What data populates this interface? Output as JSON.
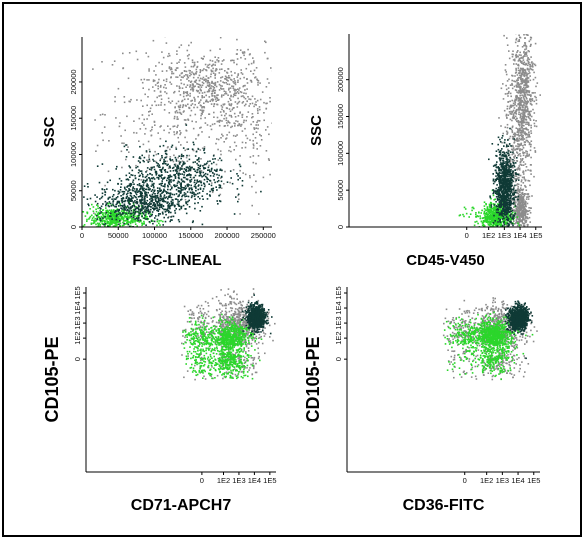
{
  "chart_data": [
    {
      "type": "scatter",
      "panel": "top-left",
      "xlabel": "FSC-LINEAL",
      "ylabel": "SSC",
      "x_scale": "linear",
      "y_scale": "linear",
      "xlim": [
        0,
        262000
      ],
      "ylim": [
        0,
        262000
      ],
      "x_ticks": [
        0,
        50000,
        100000,
        150000,
        200000,
        250000
      ],
      "x_tick_labels": [
        "0",
        "50000",
        "100000",
        "150000",
        "200000",
        "250000"
      ],
      "y_ticks": [
        0,
        50000,
        100000,
        150000,
        200000
      ],
      "y_tick_labels": [
        "0",
        "50000",
        "100000",
        "150000",
        "200000"
      ],
      "populations": [
        {
          "color": "#8c8c8c",
          "role": "background events",
          "clusters": [
            {
              "cx": 140000,
              "cy": 160000,
              "sx": 55000,
              "sy": 55000,
              "n": 500
            },
            {
              "cx": 170000,
              "cy": 195000,
              "sx": 30000,
              "sy": 22000,
              "n": 350
            },
            {
              "cx": 230000,
              "cy": 150000,
              "sx": 25000,
              "sy": 50000,
              "n": 200
            }
          ]
        },
        {
          "color": "#2bd62b",
          "role": "green population",
          "clusters": [
            {
              "cx": 45000,
              "cy": 12000,
              "sx": 22000,
              "sy": 8000,
              "n": 500
            }
          ]
        },
        {
          "color": "#0f3a36",
          "role": "dark teal population",
          "clusters": [
            {
              "cx": 80000,
              "cy": 35000,
              "sx": 30000,
              "sy": 14000,
              "n": 600
            },
            {
              "cx": 130000,
              "cy": 70000,
              "sx": 35000,
              "sy": 20000,
              "n": 600
            }
          ]
        }
      ]
    },
    {
      "type": "scatter",
      "panel": "top-right",
      "xlabel": "CD45-V450",
      "ylabel": "SSC",
      "x_scale": "logicle",
      "y_scale": "linear",
      "xlim": [
        -300,
        250000
      ],
      "ylim": [
        0,
        262000
      ],
      "x_ticks": [
        0,
        100,
        1000,
        10000,
        100000
      ],
      "x_tick_labels": [
        "0",
        "1E2",
        "1E3",
        "1E4",
        "1E5"
      ],
      "y_ticks": [
        0,
        50000,
        100000,
        150000,
        200000
      ],
      "y_tick_labels": [
        "0",
        "50000",
        "100000",
        "150000",
        "200000"
      ],
      "populations": [
        {
          "color": "#8c8c8c",
          "role": "background events",
          "clusters": [
            {
              "cx": 15000,
              "cy": 180000,
              "sx": 0.35,
              "sy": 45000,
              "n": 700
            },
            {
              "cx": 4000,
              "cy": 100000,
              "sx": 0.4,
              "sy": 70000,
              "n": 400
            },
            {
              "cx": 10000,
              "cy": 25000,
              "sx": 0.25,
              "sy": 15000,
              "n": 350
            }
          ]
        },
        {
          "color": "#2bd62b",
          "role": "green population",
          "clusters": [
            {
              "cx": 300,
              "cy": 15000,
              "sx": 0.45,
              "sy": 10000,
              "n": 600
            }
          ]
        },
        {
          "color": "#0f3a36",
          "role": "dark teal population",
          "clusters": [
            {
              "cx": 1000,
              "cy": 55000,
              "sx": 0.3,
              "sy": 25000,
              "n": 900
            }
          ]
        }
      ]
    },
    {
      "type": "scatter",
      "panel": "bottom-left",
      "xlabel": "CD71-APCH7",
      "ylabel": "CD105-PE",
      "x_scale": "logicle",
      "y_scale": "logicle",
      "xlim": [
        -300,
        250000
      ],
      "ylim": [
        -300,
        250000
      ],
      "x_ticks": [
        0,
        100,
        1000,
        10000,
        100000
      ],
      "x_tick_labels": [
        "0",
        "1E2",
        "1E3",
        "1E4",
        "1E5"
      ],
      "y_ticks": [
        0,
        100,
        1000,
        10000,
        100000
      ],
      "y_tick_labels": [
        "0",
        "1E2",
        "1E3",
        "1E4",
        "1E5"
      ],
      "populations": [
        {
          "color": "#8c8c8c",
          "role": "background events",
          "clusters": [
            {
              "cx": 500,
              "cy": 500,
              "sx": 0.9,
              "sy": 0.9,
              "n": 900
            }
          ]
        },
        {
          "color": "#2bd62b",
          "role": "green population",
          "clusters": [
            {
              "cx": 150,
              "cy": 80,
              "sx": 0.7,
              "sy": 0.55,
              "n": 1100
            }
          ]
        },
        {
          "color": "#0f3a36",
          "role": "dark teal population",
          "clusters": [
            {
              "cx": 12000,
              "cy": 3000,
              "sx": 0.28,
              "sy": 0.38,
              "n": 900
            }
          ]
        }
      ]
    },
    {
      "type": "scatter",
      "panel": "bottom-right",
      "xlabel": "CD36-FITC",
      "ylabel": "CD105-PE",
      "x_scale": "logicle",
      "y_scale": "logicle",
      "xlim": [
        -300,
        250000
      ],
      "ylim": [
        -300,
        250000
      ],
      "x_ticks": [
        0,
        100,
        1000,
        10000,
        100000
      ],
      "x_tick_labels": [
        "0",
        "1E2",
        "1E3",
        "1E4",
        "1E5"
      ],
      "y_ticks": [
        0,
        100,
        1000,
        10000,
        100000
      ],
      "y_tick_labels": [
        "0",
        "1E2",
        "1E3",
        "1E4",
        "1E5"
      ],
      "populations": [
        {
          "color": "#8c8c8c",
          "role": "background events",
          "clusters": [
            {
              "cx": 300,
              "cy": 300,
              "sx": 0.9,
              "sy": 0.8,
              "n": 900
            }
          ]
        },
        {
          "color": "#2bd62b",
          "role": "green population",
          "clusters": [
            {
              "cx": 200,
              "cy": 150,
              "sx": 0.6,
              "sy": 0.5,
              "n": 1100
            }
          ]
        },
        {
          "color": "#0f3a36",
          "role": "dark teal population",
          "clusters": [
            {
              "cx": 10000,
              "cy": 2500,
              "sx": 0.3,
              "sy": 0.38,
              "n": 900
            }
          ]
        }
      ]
    }
  ]
}
